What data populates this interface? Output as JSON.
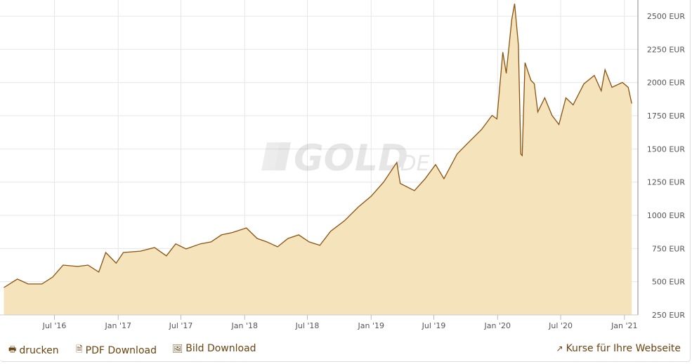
{
  "watermark": {
    "logo_text": "GOLD.DE"
  },
  "colors": {
    "line": "#8a5210",
    "fill": "#f4e3bb",
    "grid": "#e6e6e6",
    "axis": "#888888",
    "link": "#6b4410"
  },
  "footer": {
    "print": {
      "label": "drucken",
      "icon": "print-icon"
    },
    "pdf": {
      "label": "PDF Download",
      "icon": "file-pdf-icon"
    },
    "image": {
      "label": "Bild Download",
      "icon": "image-icon"
    },
    "embed": {
      "label": "Kurse für Ihre Webseite",
      "icon": "share-icon"
    }
  },
  "chart_data": {
    "type": "area",
    "title": "",
    "xlabel": "",
    "ylabel": "",
    "ylim": [
      250,
      2600
    ],
    "y_axis_position": "right",
    "grid": true,
    "y_ticks": [
      250,
      500,
      750,
      1000,
      1250,
      1500,
      1750,
      2000,
      2250,
      2500
    ],
    "y_tick_labels": [
      "250 EUR",
      "500 EUR",
      "750 EUR",
      "1000 EUR",
      "1250 EUR",
      "1500 EUR",
      "1750 EUR",
      "2000 EUR",
      "2250 EUR",
      "2500 EUR"
    ],
    "x_ticks": [
      "2016-07-01",
      "2017-01-01",
      "2017-07-01",
      "2018-01-01",
      "2018-07-01",
      "2019-01-01",
      "2019-07-01",
      "2020-01-01",
      "2020-07-01",
      "2021-01-01"
    ],
    "x_tick_labels": [
      "Jul '16",
      "Jan '17",
      "Jul '17",
      "Jan '18",
      "Jul '18",
      "Jan '19",
      "Jul '19",
      "Jan '20",
      "Jul '20",
      "Jan '21"
    ],
    "series": [
      {
        "dates": [
          "2016-02-06",
          "2016-03-16",
          "2016-04-16",
          "2016-05-26",
          "2016-06-26",
          "2016-07-26",
          "2016-09-06",
          "2016-10-06",
          "2016-11-06",
          "2016-11-26",
          "2016-12-26",
          "2017-01-16",
          "2017-03-06",
          "2017-04-16",
          "2017-05-20",
          "2017-06-16",
          "2017-07-16",
          "2017-08-26",
          "2017-09-26",
          "2017-10-26",
          "2017-11-26",
          "2018-01-06",
          "2018-02-06",
          "2018-03-06",
          "2018-04-06",
          "2018-05-06",
          "2018-06-06",
          "2018-07-06",
          "2018-08-06",
          "2018-09-06",
          "2018-10-16",
          "2018-11-26",
          "2019-01-01",
          "2019-02-06",
          "2019-03-16",
          "2019-03-26",
          "2019-05-06",
          "2019-06-06",
          "2019-07-06",
          "2019-07-30",
          "2019-09-06",
          "2019-10-06",
          "2019-11-16",
          "2019-12-16",
          "2019-12-30",
          "2020-01-16",
          "2020-01-26",
          "2020-02-11",
          "2020-02-19",
          "2020-03-01",
          "2020-03-08",
          "2020-03-12",
          "2020-03-20",
          "2020-04-06",
          "2020-04-16",
          "2020-04-26",
          "2020-05-16",
          "2020-06-06",
          "2020-06-26",
          "2020-07-16",
          "2020-08-06",
          "2020-09-06",
          "2020-10-06",
          "2020-10-26",
          "2020-11-06",
          "2020-11-26",
          "2020-12-26",
          "2021-01-12",
          "2021-01-22"
        ],
        "values": [
          456,
          520,
          483,
          483,
          535,
          625,
          615,
          625,
          573,
          720,
          640,
          720,
          730,
          757,
          695,
          785,
          747,
          785,
          800,
          853,
          870,
          905,
          826,
          800,
          763,
          826,
          853,
          800,
          774,
          880,
          959,
          1065,
          1144,
          1250,
          1398,
          1240,
          1186,
          1276,
          1382,
          1276,
          1462,
          1541,
          1647,
          1753,
          1726,
          2229,
          2070,
          2477,
          2594,
          2282,
          1462,
          1450,
          2150,
          2017,
          1990,
          1779,
          1885,
          1753,
          1684,
          1885,
          1832,
          1990,
          2054,
          1938,
          2097,
          1964,
          2001,
          1964,
          1842
        ]
      }
    ]
  }
}
